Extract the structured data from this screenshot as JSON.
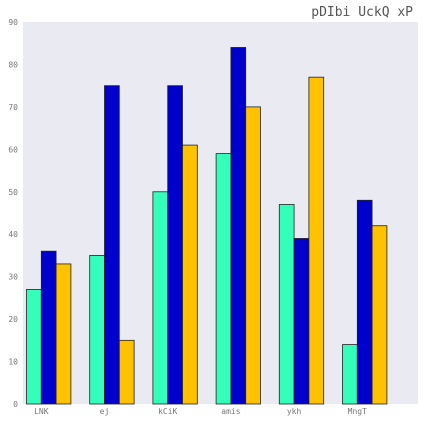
{
  "chart_data": {
    "type": "bar",
    "title": "pDIbi UckQ xP",
    "xlabel": "",
    "ylabel": "",
    "categories": [
      "LNK",
      "ej",
      "kCiK",
      "amis",
      "ykh",
      "MngT"
    ],
    "series": [
      {
        "color": "#33ffbb",
        "values": [
          27,
          35,
          50,
          59,
          47,
          14
        ]
      },
      {
        "color": "#0000cc",
        "values": [
          36,
          75,
          75,
          84,
          39,
          48
        ]
      },
      {
        "color": "#ffc200",
        "values": [
          33,
          15,
          61,
          70,
          77,
          42
        ]
      }
    ],
    "ylim": [
      0,
      90
    ],
    "yticks": [
      0,
      10,
      20,
      30,
      40,
      50,
      60,
      70,
      80,
      90
    ],
    "grid": false,
    "background_color": "#eaeaf2",
    "bar_edge_color": "#222222"
  }
}
